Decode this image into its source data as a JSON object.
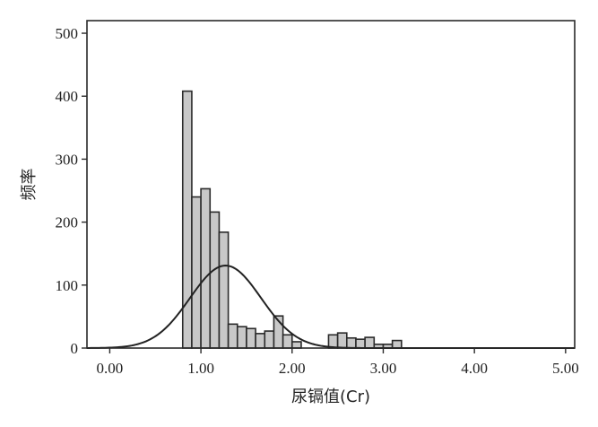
{
  "chart_data": {
    "type": "bar",
    "xlabel": "尿镉值(Cr)",
    "ylabel": "频率",
    "xlim": [
      -0.25,
      5.1
    ],
    "ylim": [
      0,
      520
    ],
    "bin_width": 0.1,
    "x_ticks": [
      {
        "value": 0,
        "label": "0.00"
      },
      {
        "value": 1,
        "label": "1.00"
      },
      {
        "value": 2,
        "label": "2.00"
      },
      {
        "value": 3,
        "label": "3.00"
      },
      {
        "value": 4,
        "label": "4.00"
      },
      {
        "value": 5,
        "label": "5.00"
      }
    ],
    "y_ticks": [
      {
        "value": 0,
        "label": "0"
      },
      {
        "value": 100,
        "label": "100"
      },
      {
        "value": 200,
        "label": "200"
      },
      {
        "value": 300,
        "label": "300"
      },
      {
        "value": 400,
        "label": "400"
      },
      {
        "value": 500,
        "label": "500"
      }
    ],
    "bins": [
      {
        "start": 0.8,
        "count": 408
      },
      {
        "start": 0.9,
        "count": 240
      },
      {
        "start": 1.0,
        "count": 253
      },
      {
        "start": 1.1,
        "count": 216
      },
      {
        "start": 1.2,
        "count": 184
      },
      {
        "start": 1.3,
        "count": 38
      },
      {
        "start": 1.4,
        "count": 34
      },
      {
        "start": 1.5,
        "count": 31
      },
      {
        "start": 1.6,
        "count": 23
      },
      {
        "start": 1.7,
        "count": 27
      },
      {
        "start": 1.8,
        "count": 51
      },
      {
        "start": 1.9,
        "count": 21
      },
      {
        "start": 2.0,
        "count": 10
      },
      {
        "start": 2.4,
        "count": 21
      },
      {
        "start": 2.5,
        "count": 24
      },
      {
        "start": 2.6,
        "count": 16
      },
      {
        "start": 2.7,
        "count": 14
      },
      {
        "start": 2.8,
        "count": 17
      },
      {
        "start": 2.9,
        "count": 6
      },
      {
        "start": 3.0,
        "count": 6
      },
      {
        "start": 3.1,
        "count": 12
      }
    ],
    "normal_curve": {
      "mean": 1.27,
      "sd": 0.39,
      "peak": 131
    }
  }
}
